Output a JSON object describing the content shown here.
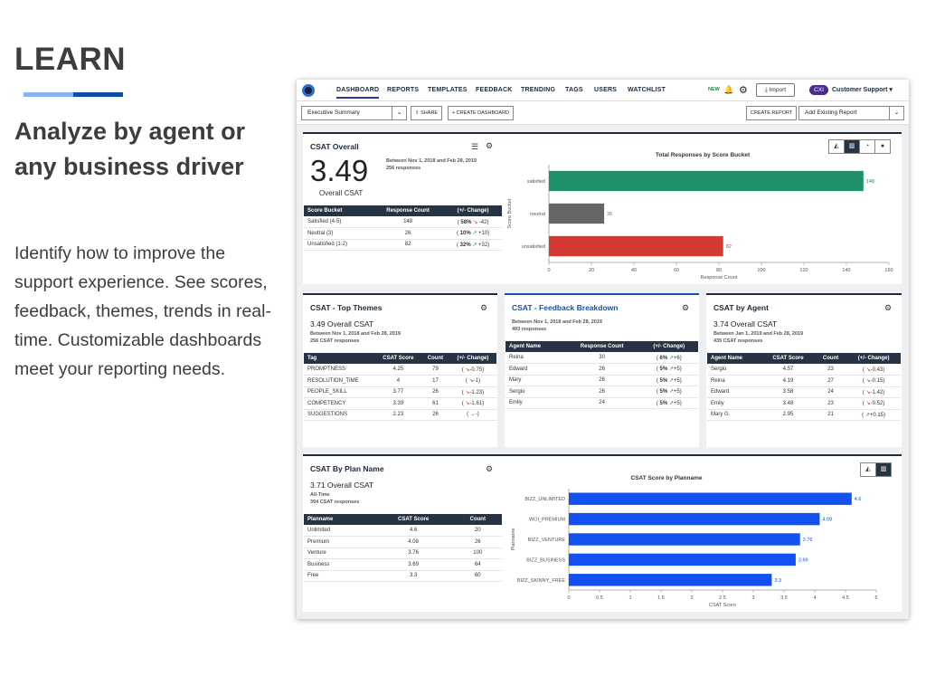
{
  "slide": {
    "title": "LEARN",
    "headline": "Analyze by agent or any business driver",
    "body": "Identify how to improve the support experience. See scores, feedback, themes, trends in real-time. Customizable dashboards meet your reporting needs.",
    "rule_colors": [
      "#8ab4f0",
      "#0b4ea2"
    ]
  },
  "nav": {
    "tabs": [
      "DASHBOARD",
      "REPORTS",
      "TEMPLATES",
      "FEEDBACK",
      "TRENDING",
      "TAGS",
      "USERS",
      "WATCHLIST"
    ],
    "active_tab": "DASHBOARD",
    "new_badge": "NEW",
    "import_label": "Import",
    "org_badge": "CXI",
    "org_name": "Customer Support",
    "icons": {
      "logo": "app-logo-icon",
      "bell": "bell-icon",
      "gear": "gear-icon",
      "import": "download-icon",
      "caret": "chevron-down-icon"
    }
  },
  "toolbar": {
    "dashboard_select": "Executive Summary",
    "share_label": "SHARE",
    "create_dashboard_label": "+ CREATE DASHBOARD",
    "create_report_label": "CREATE REPORT",
    "add_report_placeholder": "Add Existing Report"
  },
  "csat_overall": {
    "title": "CSAT Overall",
    "score": "3.49",
    "score_label": "Overall CSAT",
    "date_range": "Between Nov 1, 2018 and Feb 28, 2019",
    "responses": "256 responses",
    "table_headers": [
      "Score Bucket",
      "Response Count",
      "(+/- Change)"
    ],
    "rows": [
      {
        "bucket": "Satisfied (4-5)",
        "count": "148",
        "pct": "58%",
        "trend": "down",
        "change": "-42"
      },
      {
        "bucket": "Neutral (3)",
        "count": "26",
        "pct": "10%",
        "trend": "up",
        "change": "+10"
      },
      {
        "bucket": "Unsatisfied (1-2)",
        "count": "82",
        "pct": "32%",
        "trend": "up",
        "change": "+32"
      }
    ],
    "view_icons": [
      "area-chart-icon",
      "bar-chart-icon",
      "pie-chart-icon",
      "comment-icon"
    ]
  },
  "top_themes": {
    "title": "CSAT - Top Themes",
    "score": "3.49",
    "score_label": "Overall CSAT",
    "date_range": "Between Nov 1, 2018 and Feb 28, 2019",
    "responses": "256 CSAT responses",
    "table_headers": [
      "Tag",
      "CSAT Score",
      "Count",
      "(+/- Change)"
    ],
    "rows": [
      {
        "tag": "PROMPTNESS",
        "score": "4.25",
        "count": "79",
        "trend": "down",
        "change": "-0.75"
      },
      {
        "tag": "RESOLUTION_TIME",
        "score": "4",
        "count": "17",
        "trend": "down",
        "change": "-1"
      },
      {
        "tag": "PEOPLE_SKILL",
        "score": "3.77",
        "count": "26",
        "trend": "down",
        "change": "-1.23"
      },
      {
        "tag": "COMPETENCY",
        "score": "3.39",
        "count": "61",
        "trend": "down",
        "change": "-1.61"
      },
      {
        "tag": "SUGGESTIONS",
        "score": "2.23",
        "count": "26",
        "trend": "flat",
        "change": "-"
      }
    ]
  },
  "feedback_breakdown": {
    "title": "CSAT - Feedback Breakdown",
    "date_range": "Between Nov 1, 2018 and Feb 28, 2019",
    "responses": "493 responses",
    "table_headers": [
      "Agent Name",
      "Response Count",
      "(+/- Change)"
    ],
    "rows": [
      {
        "agent": "Reina",
        "count": "30",
        "pct": "6%",
        "change": "+6"
      },
      {
        "agent": "Edward",
        "count": "26",
        "pct": "5%",
        "change": "+5"
      },
      {
        "agent": "Mary",
        "count": "26",
        "pct": "5%",
        "change": "+5"
      },
      {
        "agent": "Sergio",
        "count": "26",
        "pct": "5%",
        "change": "+5"
      },
      {
        "agent": "Emily",
        "count": "24",
        "pct": "5%",
        "change": "+5"
      }
    ]
  },
  "csat_by_agent": {
    "title": "CSAT by Agent",
    "score": "3.74",
    "score_label": "Overall CSAT",
    "date_range": "Between Jan 1, 2019 and Feb 28, 2019",
    "responses": "435 CSAT responses",
    "table_headers": [
      "Agent Name",
      "CSAT Score",
      "Count",
      "(+/- Change)"
    ],
    "rows": [
      {
        "agent": "Sergio",
        "score": "4.57",
        "count": "23",
        "trend": "down",
        "change": "-0.43"
      },
      {
        "agent": "Reina",
        "score": "4.19",
        "count": "27",
        "trend": "down",
        "change": "-0.15"
      },
      {
        "agent": "Edward",
        "score": "3.58",
        "count": "24",
        "trend": "down",
        "change": "-1.42"
      },
      {
        "agent": "Emily",
        "score": "3.48",
        "count": "23",
        "trend": "down",
        "change": "-0.52"
      },
      {
        "agent": "Mary G.",
        "score": "2.95",
        "count": "21",
        "trend": "up",
        "change": "+0.15"
      }
    ]
  },
  "by_plan": {
    "title": "CSAT By Plan Name",
    "score": "3.71",
    "score_label": "Overall CSAT",
    "date_range": "All-Time",
    "responses": "394 CSAT responses",
    "table_headers": [
      "Planname",
      "CSAT Score",
      "Count"
    ],
    "rows": [
      {
        "plan": "Unlimited",
        "score": "4.6",
        "count": "20"
      },
      {
        "plan": "Premium",
        "score": "4.08",
        "count": "26"
      },
      {
        "plan": "Venture",
        "score": "3.76",
        "count": "100"
      },
      {
        "plan": "Business",
        "score": "3.69",
        "count": "64"
      },
      {
        "plan": "Free",
        "score": "3.3",
        "count": "60"
      }
    ],
    "view_icons": [
      "area-chart-icon",
      "bar-chart-icon"
    ]
  },
  "chart_data": [
    {
      "type": "bar",
      "orientation": "horizontal",
      "title": "Total Responses by Score Bucket",
      "xlabel": "Response Count",
      "ylabel": "Score Bucket",
      "categories": [
        "satisfied",
        "neutral",
        "unsatisfied"
      ],
      "values": [
        148,
        26,
        82
      ],
      "colors": [
        "#1f9168",
        "#666666",
        "#d43a31"
      ],
      "label_colors": [
        "#1f9168",
        "#666666",
        "#d43a31"
      ],
      "xlim": [
        0,
        160
      ],
      "xticks": [
        0,
        20,
        40,
        60,
        80,
        100,
        120,
        140,
        160
      ],
      "grid": false
    },
    {
      "type": "bar",
      "orientation": "horizontal",
      "title": "CSAT Score by Planname",
      "xlabel": "CSAT Score",
      "ylabel": "Planname",
      "categories": [
        "BIZZ_UNLIMITED",
        "WOI_PREMIUM",
        "BIZZ_VENTURE",
        "BIZZ_BUSINESS",
        "BIZZ_SKINNY_FREE"
      ],
      "values": [
        4.6,
        4.08,
        3.76,
        3.69,
        3.3
      ],
      "colors": [
        "#1250f0"
      ],
      "xlim": [
        0,
        5
      ],
      "xticks": [
        0,
        0.5,
        1,
        1.5,
        2,
        2.5,
        3,
        3.5,
        4,
        4.5,
        5
      ],
      "grid": false
    }
  ]
}
